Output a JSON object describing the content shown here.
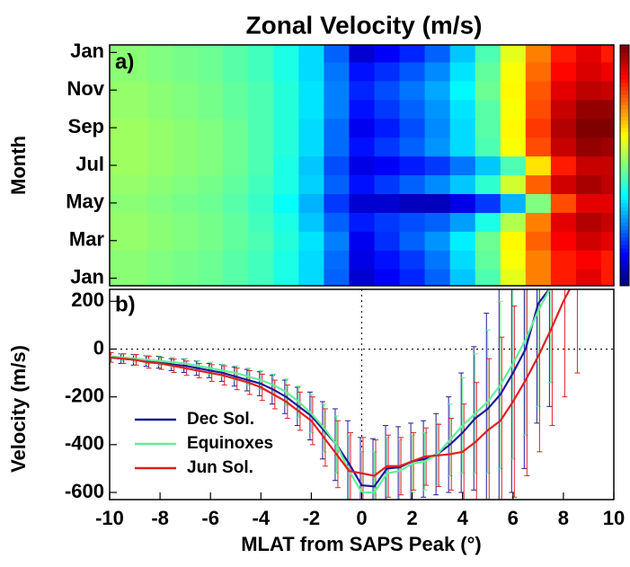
{
  "chart_data": [
    {
      "type": "heatmap",
      "title": "Zonal Velocity (m/s)",
      "panel_label": "a)",
      "y_label": "Month",
      "colormap": "jet",
      "x": [
        -10,
        -9,
        -8,
        -7,
        -6,
        -5,
        -4,
        -3,
        -2,
        -1,
        0,
        1,
        2,
        3,
        4,
        5,
        6,
        7,
        8,
        9,
        10
      ],
      "y": [
        1,
        2,
        3,
        4,
        5,
        6,
        7,
        8,
        9,
        10,
        11,
        12,
        13
      ],
      "z": [
        [
          -90,
          -90,
          -100,
          -110,
          -120,
          -140,
          -160,
          -200,
          -260,
          -380,
          -520,
          -480,
          -440,
          -380,
          -280,
          -150,
          0,
          150,
          250,
          300,
          250
        ],
        [
          -90,
          -90,
          -100,
          -110,
          -120,
          -140,
          -160,
          -200,
          -260,
          -370,
          -500,
          -460,
          -420,
          -360,
          -260,
          -130,
          20,
          150,
          250,
          280,
          250
        ],
        [
          -80,
          -80,
          -90,
          -100,
          -110,
          -130,
          -150,
          -190,
          -250,
          -350,
          -490,
          -430,
          -380,
          -330,
          -240,
          -120,
          30,
          180,
          280,
          320,
          300
        ],
        [
          -80,
          -80,
          -90,
          -100,
          -110,
          -130,
          -160,
          -200,
          -280,
          -380,
          -450,
          -420,
          -400,
          -380,
          -320,
          -200,
          -50,
          150,
          300,
          350,
          330
        ],
        [
          -90,
          -90,
          -100,
          -110,
          -120,
          -140,
          -170,
          -220,
          -300,
          -420,
          -520,
          -520,
          -540,
          -540,
          -500,
          -420,
          -300,
          -100,
          200,
          300,
          300
        ],
        [
          -80,
          -80,
          -90,
          -100,
          -110,
          -130,
          -160,
          -200,
          -270,
          -380,
          -460,
          -420,
          -380,
          -340,
          -280,
          -180,
          -20,
          180,
          320,
          360,
          340
        ],
        [
          -70,
          -70,
          -80,
          -90,
          -100,
          -120,
          -150,
          -200,
          -280,
          -400,
          -500,
          -480,
          -450,
          -420,
          -360,
          -280,
          -150,
          50,
          250,
          330,
          330
        ],
        [
          -70,
          -70,
          -80,
          -90,
          -100,
          -120,
          -150,
          -190,
          -260,
          -370,
          -460,
          -420,
          -380,
          -330,
          -260,
          -150,
          20,
          200,
          330,
          380,
          370
        ],
        [
          -70,
          -70,
          -80,
          -90,
          -100,
          -120,
          -150,
          -190,
          -260,
          -370,
          -490,
          -450,
          -400,
          -340,
          -260,
          -140,
          30,
          220,
          350,
          400,
          400
        ],
        [
          -80,
          -80,
          -90,
          -100,
          -110,
          -130,
          -150,
          -190,
          -250,
          -350,
          -460,
          -420,
          -380,
          -330,
          -250,
          -140,
          20,
          200,
          330,
          380,
          380
        ],
        [
          -80,
          -80,
          -90,
          -100,
          -110,
          -130,
          -150,
          -190,
          -250,
          -350,
          -440,
          -400,
          -360,
          -310,
          -230,
          -120,
          30,
          190,
          300,
          340,
          330
        ],
        [
          -90,
          -90,
          -100,
          -110,
          -120,
          -140,
          -160,
          -200,
          -260,
          -360,
          -460,
          -430,
          -390,
          -340,
          -250,
          -130,
          20,
          170,
          270,
          310,
          290
        ],
        [
          -90,
          -90,
          -100,
          -110,
          -120,
          -140,
          -160,
          -200,
          -260,
          -380,
          -520,
          -480,
          -440,
          -380,
          -280,
          -150,
          0,
          150,
          250,
          300,
          250
        ]
      ],
      "xlim": [
        -10,
        10
      ],
      "ylim": [
        0.6,
        13.4
      ],
      "zlim": [
        -600,
        400
      ],
      "yticks": [
        {
          "value": 1,
          "label": "Jan"
        },
        {
          "value": 3,
          "label": "Mar"
        },
        {
          "value": 5,
          "label": "May"
        },
        {
          "value": 7,
          "label": "Jul"
        },
        {
          "value": 9,
          "label": "Sep"
        },
        {
          "value": 11,
          "label": "Nov"
        },
        {
          "value": 13,
          "label": "Jan"
        }
      ]
    },
    {
      "type": "line",
      "panel_label": "b)",
      "x_label": "MLAT from SAPS Peak (°)",
      "y_label": "Velocity (m/s)",
      "x": [
        -10,
        -9.5,
        -9,
        -8.5,
        -8,
        -7.5,
        -7,
        -6.5,
        -6,
        -5.5,
        -5,
        -4.5,
        -4,
        -3.5,
        -3,
        -2.5,
        -2,
        -1.5,
        -1,
        -0.5,
        0,
        0.5,
        1,
        1.5,
        2,
        2.5,
        3,
        3.5,
        4,
        4.5,
        5,
        5.5,
        6,
        6.5,
        7,
        7.5,
        8,
        8.5,
        9,
        9.5,
        10
      ],
      "series": [
        {
          "name": "Dec Sol.",
          "color": "#1c1c9a",
          "values": [
            -35,
            -40,
            -45,
            -50,
            -55,
            -65,
            -70,
            -80,
            -90,
            -100,
            -115,
            -130,
            -145,
            -170,
            -200,
            -240,
            -280,
            -340,
            -400,
            -480,
            -570,
            -575,
            -500,
            -495,
            -470,
            -460,
            -440,
            -400,
            -350,
            -290,
            -250,
            -190,
            -100,
            0,
            190,
            260,
            null,
            null,
            null,
            null,
            null
          ],
          "errors": [
            20,
            20,
            22,
            22,
            25,
            25,
            28,
            30,
            30,
            35,
            40,
            45,
            50,
            60,
            70,
            80,
            100,
            120,
            150,
            180,
            200,
            200,
            180,
            170,
            160,
            160,
            170,
            200,
            250,
            300,
            400,
            450,
            500,
            500,
            500,
            500,
            null,
            null,
            null,
            null,
            null
          ]
        },
        {
          "name": "Equinoxes",
          "color": "#66ee99",
          "values": [
            -30,
            -35,
            -40,
            -45,
            -50,
            -55,
            -60,
            -70,
            -80,
            -90,
            -100,
            -115,
            -130,
            -150,
            -180,
            -220,
            -270,
            -330,
            -400,
            -510,
            -600,
            -600,
            -520,
            -510,
            -480,
            -470,
            -440,
            -380,
            -320,
            -270,
            -220,
            -150,
            -60,
            40,
            160,
            260,
            null,
            null,
            null,
            null,
            null
          ],
          "errors": [
            15,
            15,
            15,
            18,
            18,
            20,
            20,
            22,
            25,
            25,
            30,
            35,
            40,
            45,
            55,
            65,
            80,
            100,
            120,
            150,
            170,
            170,
            150,
            130,
            120,
            120,
            130,
            150,
            200,
            250,
            300,
            350,
            400,
            400,
            400,
            400,
            null,
            null,
            null,
            null,
            null
          ]
        },
        {
          "name": "Jun Sol.",
          "color": "#e02020",
          "values": [
            -35,
            -40,
            -45,
            -55,
            -60,
            -70,
            -80,
            -90,
            -100,
            -110,
            -125,
            -140,
            -160,
            -190,
            -220,
            -260,
            -300,
            -370,
            -440,
            -510,
            -520,
            -530,
            -490,
            -490,
            -470,
            -450,
            -445,
            -440,
            -430,
            -390,
            -340,
            -300,
            -220,
            -130,
            -30,
            80,
            200,
            300,
            null,
            null,
            null
          ],
          "errors": [
            20,
            20,
            22,
            25,
            25,
            28,
            30,
            30,
            35,
            40,
            45,
            50,
            55,
            60,
            70,
            80,
            100,
            120,
            140,
            160,
            150,
            150,
            130,
            120,
            120,
            120,
            130,
            150,
            200,
            250,
            300,
            350,
            400,
            400,
            400,
            400,
            400,
            400,
            null,
            null,
            null
          ]
        }
      ],
      "xlim": [
        -10,
        10
      ],
      "ylim": [
        -630,
        250
      ],
      "xticks": [
        -10,
        -8,
        -6,
        -4,
        -2,
        0,
        2,
        4,
        6,
        8,
        10
      ],
      "yticks": [
        -600,
        -400,
        -200,
        0,
        200
      ],
      "reference_x": 0,
      "reference_y": 0,
      "legend": "lower left"
    }
  ]
}
